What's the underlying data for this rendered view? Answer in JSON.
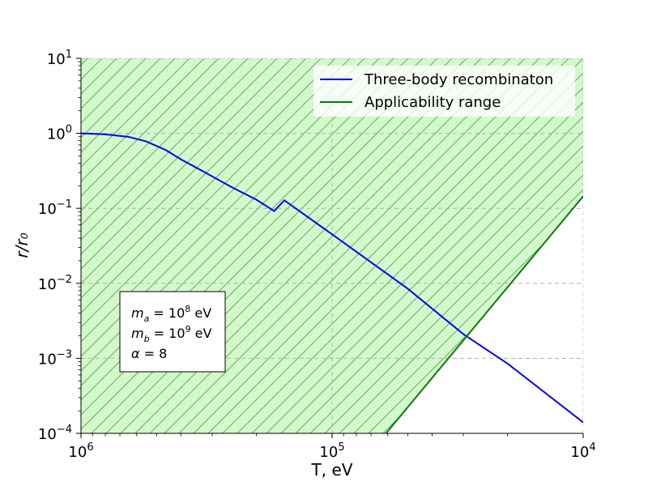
{
  "chart_data": {
    "type": "line",
    "xlabel": "T, eV",
    "ylabel": "r/r₀",
    "xscale": "log",
    "yscale": "log",
    "x_axis_direction": "decreasing",
    "xlim": [
      1000000,
      10000
    ],
    "ylim": [
      0.0001,
      10
    ],
    "grid": true,
    "legend_position": "top-right",
    "x_ticks": [
      {
        "value": 1000000,
        "base": "10",
        "exp": "6"
      },
      {
        "value": 100000,
        "base": "10",
        "exp": "5"
      },
      {
        "value": 10000,
        "base": "10",
        "exp": "4"
      }
    ],
    "y_ticks": [
      {
        "value": 10,
        "base": "10",
        "exp": "1"
      },
      {
        "value": 1,
        "base": "10",
        "exp": "0"
      },
      {
        "value": 0.1,
        "base": "10",
        "exp": "−1"
      },
      {
        "value": 0.01,
        "base": "10",
        "exp": "−2"
      },
      {
        "value": 0.001,
        "base": "10",
        "exp": "−3"
      },
      {
        "value": 0.0001,
        "base": "10",
        "exp": "−4"
      }
    ],
    "series": [
      {
        "name": "Three-body recombinaton",
        "color": "#0000ff",
        "points": [
          [
            1000000,
            1.0
          ],
          [
            800000,
            0.97
          ],
          [
            650000,
            0.9
          ],
          [
            550000,
            0.78
          ],
          [
            460000,
            0.6
          ],
          [
            400000,
            0.45
          ],
          [
            320000,
            0.3
          ],
          [
            250000,
            0.19
          ],
          [
            200000,
            0.13
          ],
          [
            170000,
            0.092
          ],
          [
            155000,
            0.128
          ],
          [
            100000,
            0.045
          ],
          [
            50000,
            0.0085
          ],
          [
            30000,
            0.0021
          ],
          [
            20000,
            0.00085
          ],
          [
            10000,
            0.00014
          ]
        ]
      },
      {
        "name": "Applicability range",
        "color": "#008000",
        "points": [
          [
            61000,
            0.0001
          ],
          [
            10000,
            0.145
          ]
        ],
        "shaded_region": "above",
        "hatch_color": "#5cb85c",
        "fill_color": "#d4f8cc"
      }
    ],
    "annotation": {
      "lines": [
        {
          "var": "m",
          "sub": "a",
          "eq": " = ",
          "base": "10",
          "exp": "8",
          "unit": " eV"
        },
        {
          "var": "m",
          "sub": "b",
          "eq": " = ",
          "base": "10",
          "exp": "9",
          "unit": " eV"
        },
        {
          "var": "α",
          "sub": "",
          "eq": " = 8",
          "base": "",
          "exp": "",
          "unit": ""
        }
      ]
    }
  }
}
